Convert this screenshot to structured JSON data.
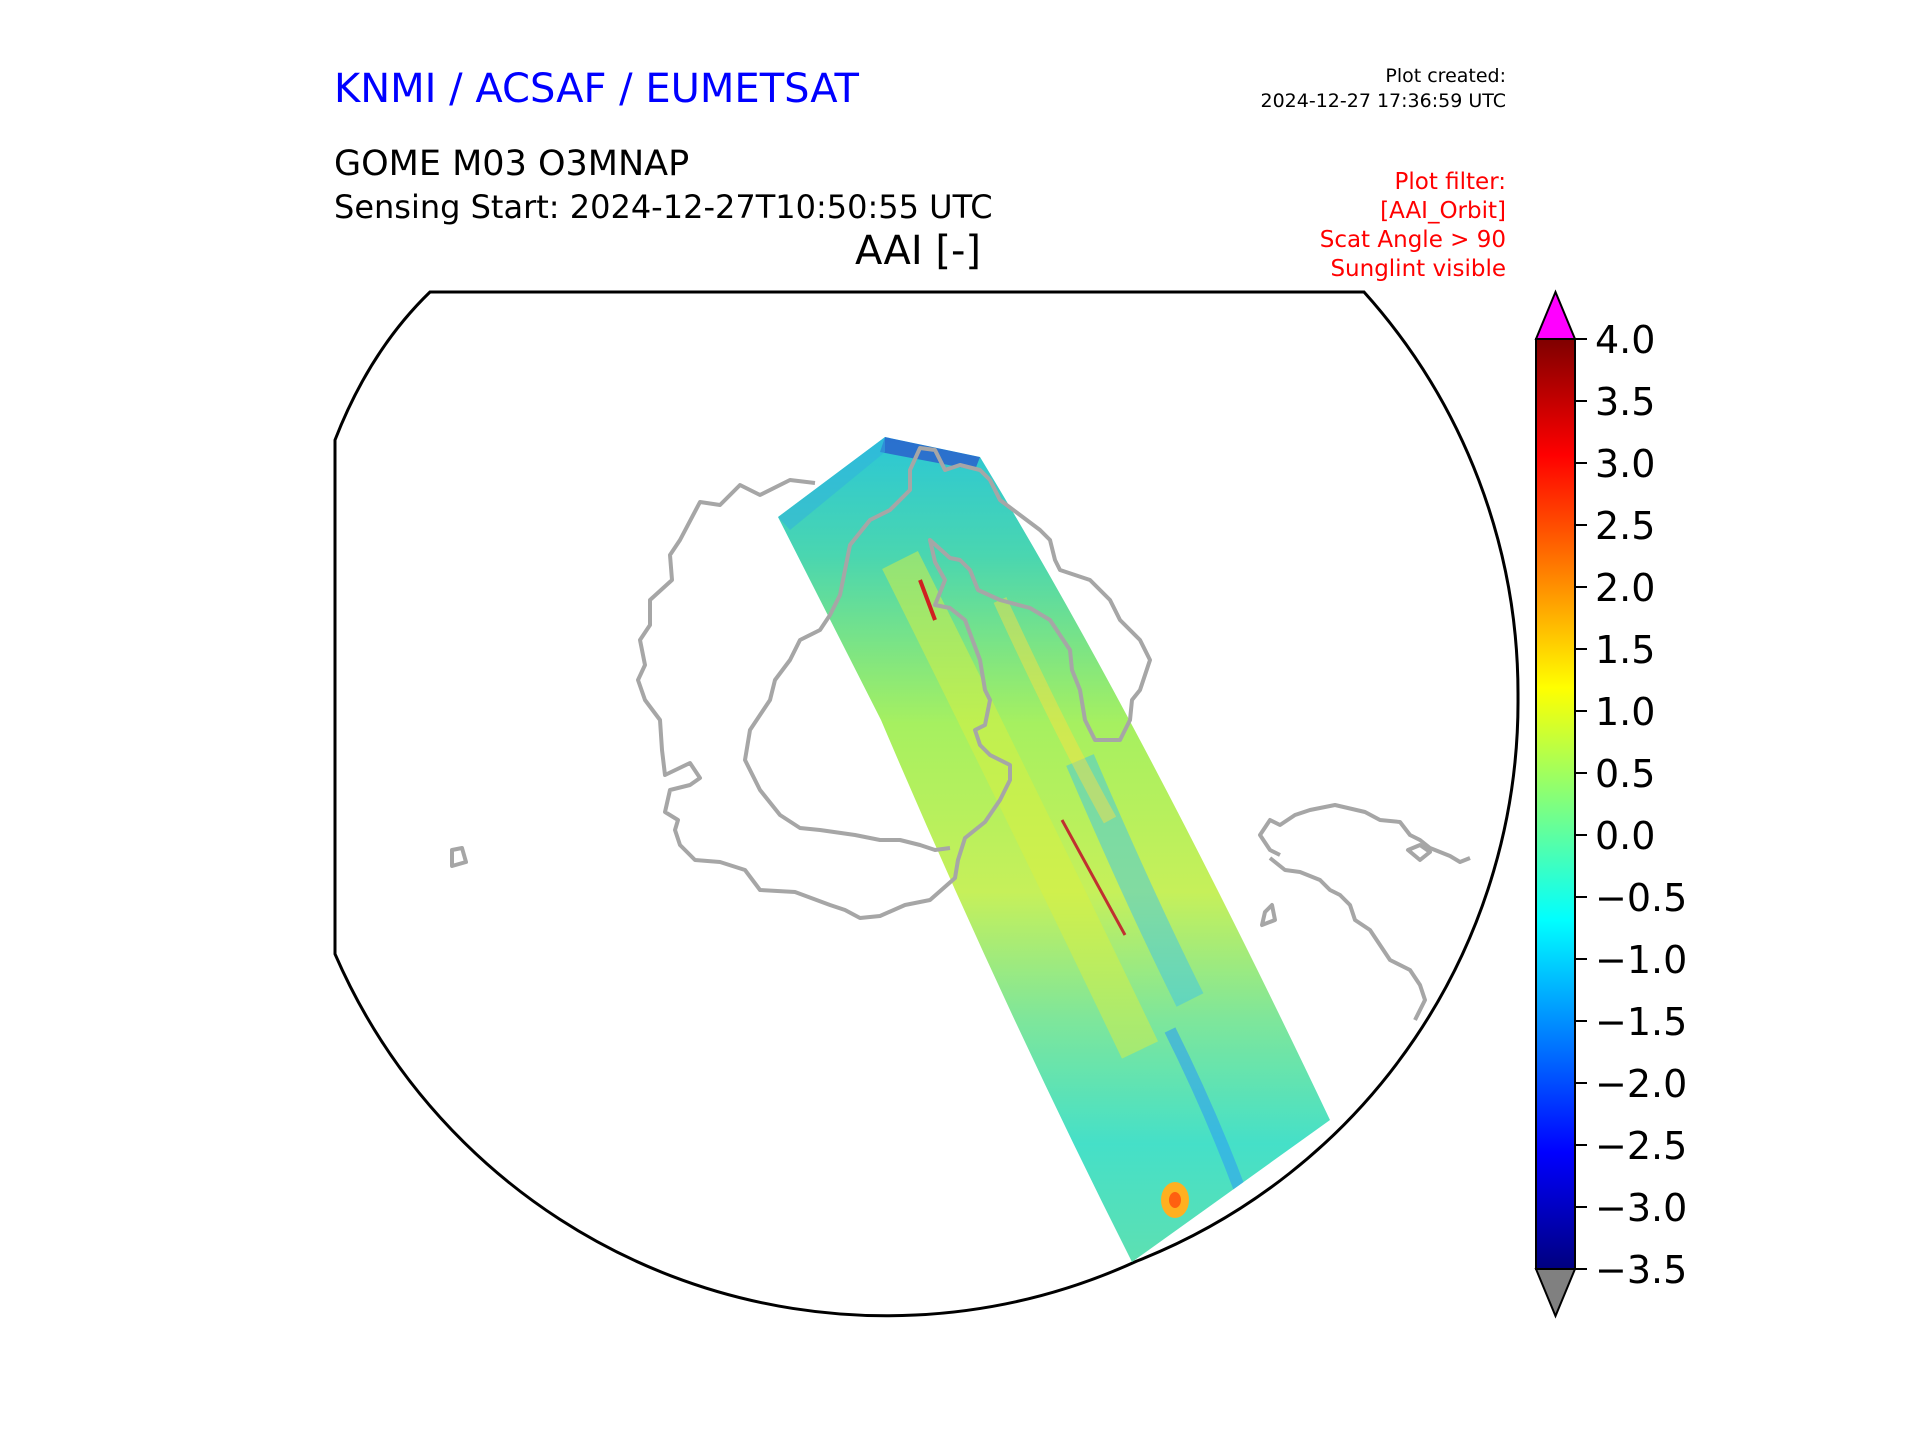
{
  "header": {
    "organization": "KNMI / ACSAF / EUMETSAT",
    "plot_created_label": "Plot created:",
    "plot_created_time": "2024-12-27 17:36:59 UTC",
    "product": "GOME M03 O3MNAP",
    "sensing_start": "Sensing Start: 2024-12-27T10:50:55 UTC",
    "variable": "AAI [-]"
  },
  "filter": {
    "title": "Plot filter:",
    "lines": [
      "[AAI_Orbit]",
      "Scat Angle > 90",
      "Sunglint visible"
    ]
  },
  "colorbar": {
    "min": -3.5,
    "max": 4.0,
    "ticks": [
      "4.0",
      "3.5",
      "3.0",
      "2.5",
      "2.0",
      "1.5",
      "1.0",
      "0.5",
      "0.0",
      "−0.5",
      "−1.0",
      "−1.5",
      "−2.0",
      "−2.5",
      "−3.0",
      "−3.5"
    ],
    "over_color": "#ff00ff",
    "under_color": "#808080",
    "colormap": [
      "#00007f",
      "#0000ff",
      "#007fff",
      "#00ffff",
      "#7fff7f",
      "#ffff00",
      "#ff7f00",
      "#ff0000",
      "#7f0000"
    ]
  },
  "map": {
    "coastline_color": "#a6a6a6",
    "boundary_color": "#000000"
  }
}
